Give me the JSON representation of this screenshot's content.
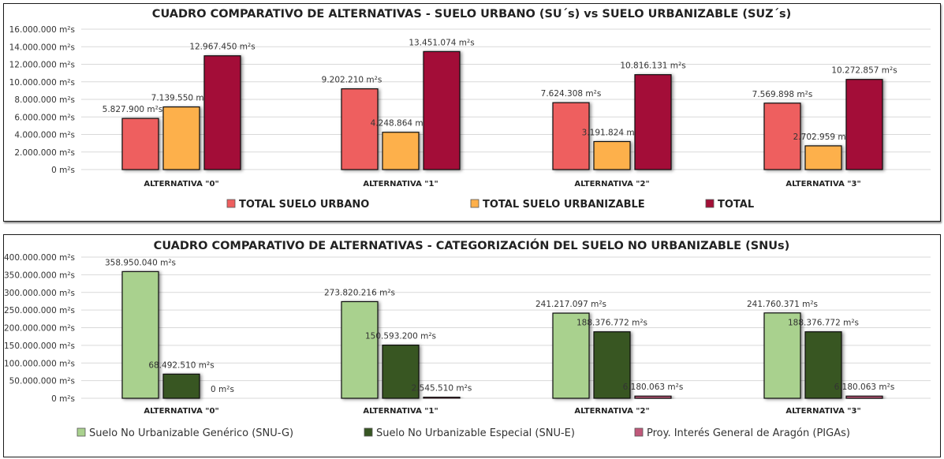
{
  "chart_data": [
    {
      "type": "bar",
      "title": "CUADRO COMPARATIVO DE ALTERNATIVAS - SUELO URBANO (SU´s) vs SUELO URBANIZABLE (SUZ´s)",
      "xlabel": "",
      "ylabel": "",
      "unit": "m²s",
      "ylim": [
        0,
        16000000
      ],
      "yticks": [
        0,
        2000000,
        4000000,
        6000000,
        8000000,
        10000000,
        12000000,
        14000000,
        16000000
      ],
      "ytick_labels": [
        "0 m²s",
        "2.000.000 m²s",
        "4.000.000 m²s",
        "6.000.000 m²s",
        "8.000.000 m²s",
        "10.000.000 m²s",
        "12.000.000 m²s",
        "14.000.000 m²s",
        "16.000.000 m²s"
      ],
      "grid": true,
      "legend_position": "bottom",
      "categories": [
        "ALTERNATIVA \"0\"",
        "ALTERNATIVA \"1\"",
        "ALTERNATIVA \"2\"",
        "ALTERNATIVA \"3\""
      ],
      "series": [
        {
          "name": "TOTAL SUELO URBANO",
          "color": "#EE5F5F",
          "values": [
            5827900,
            9202210,
            7624308,
            7569898
          ],
          "labels": [
            "5.827.900 m²s",
            "9.202.210 m²s",
            "7.624.308 m²s",
            "7.569.898 m²s"
          ]
        },
        {
          "name": "TOTAL SUELO URBANIZABLE",
          "color": "#FDB04B",
          "values": [
            7139550,
            4248864,
            3191824,
            2702959
          ],
          "labels": [
            "7.139.550 m²s",
            "4.248.864 m²s",
            "3.191.824 m²s",
            "2.702.959 m²s"
          ]
        },
        {
          "name": "TOTAL",
          "color": "#A31037",
          "values": [
            12967450,
            13451074,
            10816131,
            10272857
          ],
          "labels": [
            "12.967.450 m²s",
            "13.451.074 m²s",
            "10.816.131 m²s",
            "10.272.857 m²s"
          ]
        }
      ]
    },
    {
      "type": "bar",
      "title": "CUADRO COMPARATIVO DE ALTERNATIVAS - CATEGORIZACIÓN DEL SUELO NO URBANIZABLE (SNUs)",
      "xlabel": "",
      "ylabel": "",
      "unit": "m²s",
      "ylim": [
        0,
        400000000
      ],
      "yticks": [
        0,
        50000000,
        100000000,
        150000000,
        200000000,
        250000000,
        300000000,
        350000000,
        400000000
      ],
      "ytick_labels": [
        "0 m²s",
        "50.000.000 m²s",
        "100.000.000 m²s",
        "150.000.000 m²s",
        "200.000.000 m²s",
        "250.000.000 m²s",
        "300.000.000 m²s",
        "350.000.000 m²s",
        "400.000.000 m²s"
      ],
      "grid": true,
      "legend_position": "bottom",
      "categories": [
        "ALTERNATIVA \"0\"",
        "ALTERNATIVA \"1\"",
        "ALTERNATIVA \"2\"",
        "ALTERNATIVA \"3\""
      ],
      "series": [
        {
          "name": "Suelo No Urbanizable Genérico (SNU-G)",
          "color": "#A9D18E",
          "values": [
            358950040,
            273820216,
            241217097,
            241760371
          ],
          "labels": [
            "358.950.040 m²s",
            "273.820.216 m²s",
            "241.217.097 m²s",
            "241.760.371 m²s"
          ]
        },
        {
          "name": "Suelo No Urbanizable Especial (SNU-E)",
          "color": "#375623",
          "values": [
            68492510,
            150593200,
            188376772,
            188376772
          ],
          "labels": [
            "68.492.510 m²s",
            "150.593.200 m²s",
            "188.376.772 m²s",
            "188.376.772 m²s"
          ]
        },
        {
          "name": "Proy. Interés General de Aragón (PIGAs)",
          "color": "#C0587A",
          "values": [
            0,
            2545510,
            6180063,
            6180063
          ],
          "labels": [
            "0 m²s",
            "2.545.510 m²s",
            "6.180.063 m²s",
            "6.180.063 m²s"
          ]
        }
      ]
    }
  ]
}
